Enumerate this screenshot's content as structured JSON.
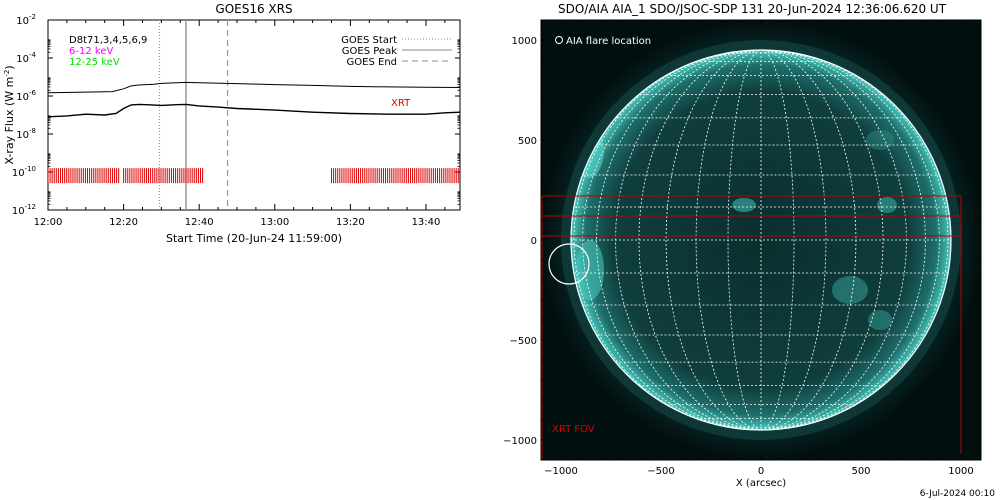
{
  "chart_data": [
    {
      "type": "line",
      "title": "GOES16 XRS",
      "xlabel": "Start Time (20-Jun-24 11:59:00)",
      "ylabel": "X-ray Flux (W m-2)",
      "y_scale": "log",
      "ylim": [
        1e-12,
        0.01
      ],
      "xlim_minutes_after_1200": [
        0,
        109
      ],
      "x_tick_labels": [
        "12:00",
        "12:20",
        "12:40",
        "13:00",
        "13:20",
        "13:40"
      ],
      "x_tick_minutes": [
        0,
        20,
        40,
        60,
        80,
        100
      ],
      "y_tick_exponents": [
        -2,
        -4,
        -6,
        -8,
        -10,
        -12
      ],
      "y_tick_base": "10",
      "legend_left": {
        "title": "D8t71,3,4,5,6,9",
        "items": [
          {
            "label": "6-12 keV",
            "color": "#ff00ff"
          },
          {
            "label": "12-25 keV",
            "color": "#00dd00"
          }
        ]
      },
      "legend_right": [
        {
          "label": "GOES Start",
          "style": "dotted",
          "minute": 29.5
        },
        {
          "label": "GOES Peak",
          "style": "solid",
          "minute": 36.5
        },
        {
          "label": "GOES End",
          "style": "dashed",
          "minute": 47.5
        }
      ],
      "series": [
        {
          "name": "",
          "color": "#000000",
          "x": [
            0,
            10,
            17,
            20,
            22,
            24,
            26,
            28,
            30,
            34,
            36.5,
            40,
            50,
            60,
            70,
            80,
            90,
            100,
            109
          ],
          "y": [
            1.5e-06,
            1.6e-06,
            1.7e-06,
            2.4e-06,
            3.4e-06,
            3.8e-06,
            4e-06,
            4.2e-06,
            4.6e-06,
            5e-06,
            5.2e-06,
            5e-06,
            4.5e-06,
            4e-06,
            3.6e-06,
            3.2e-06,
            3e-06,
            2.9e-06,
            2.8e-06
          ]
        },
        {
          "name": "",
          "color": "#000000",
          "x": [
            0,
            5,
            10,
            15,
            18,
            20,
            22,
            24,
            26,
            28,
            30,
            34,
            36.5,
            40,
            45,
            50,
            60,
            70,
            80,
            90,
            100,
            105,
            109
          ],
          "y": [
            8e-08,
            9e-08,
            1.1e-07,
            1e-07,
            1.2e-07,
            2.2e-07,
            3.4e-07,
            3.6e-07,
            3.5e-07,
            3.3e-07,
            3.2e-07,
            3.5e-07,
            3.6e-07,
            3e-07,
            2.6e-07,
            2.2e-07,
            1.8e-07,
            1.4e-07,
            1.2e-07,
            1.1e-07,
            1.1e-07,
            1.3e-07,
            1.4e-07
          ]
        }
      ],
      "xrt_label": "XRT",
      "xrt_color": "#dd0000",
      "xrt_coverage_minutes": [
        [
          0,
          19
        ],
        [
          20,
          41
        ],
        [
          75,
          109
        ]
      ]
    },
    {
      "type": "scatter",
      "title": "SDO/AIA AIA_1 SDO/JSOC-SDP 131 20-Jun-2024 12:36:06.620 UT",
      "xlabel": "X (arcsec)",
      "ylabel": "",
      "xlim": [
        -1100,
        1100
      ],
      "ylim": [
        -1100,
        1100
      ],
      "x_ticks": [
        -1000,
        -500,
        0,
        500,
        1000
      ],
      "y_ticks": [
        1000,
        500,
        0,
        -500,
        -1000
      ],
      "solar_radius_arcsec": 950,
      "legend_label": "AIA flare location",
      "flare_location": {
        "x": -960,
        "y": -120,
        "r": 100
      },
      "xrt_fov_label": "XRT FOV",
      "xrt_fov_boxes": [
        {
          "x1": -1100,
          "x2": 1000,
          "y1": 20,
          "y2": 220
        },
        {
          "x1": -1100,
          "x2": 1000,
          "y1": 120,
          "y2": 220
        },
        {
          "x1": -1100,
          "x2": 1000,
          "y1": -1100,
          "y2": 20
        }
      ],
      "fov_color": "#bb0000",
      "disk_color": "#0d3b3b",
      "limb_color": "#40c9c0"
    }
  ],
  "footer_date": "6-Jul-2024 00:10"
}
